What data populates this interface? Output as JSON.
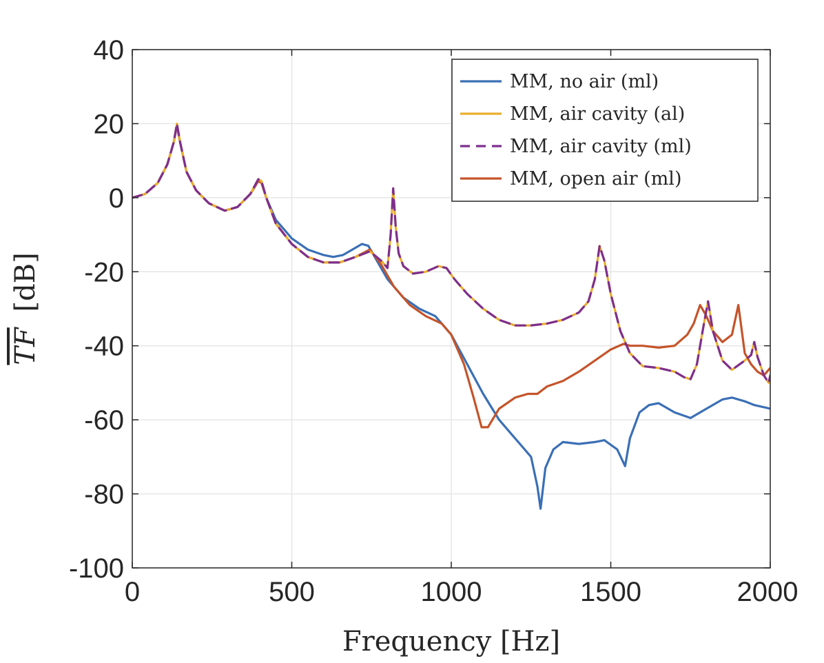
{
  "chart_data": {
    "type": "line",
    "xlabel": "Frequency [Hz]",
    "ylabel": "TF [dB]",
    "ylabel_parts": {
      "symbol": "TF",
      "unit": "[dB]"
    },
    "xlim": [
      0,
      2000
    ],
    "ylim": [
      -100,
      40
    ],
    "xticks": [
      0,
      500,
      1000,
      1500,
      2000
    ],
    "xtick_labels": [
      "0",
      "500",
      "1000",
      "1500",
      "2000"
    ],
    "yticks": [
      -100,
      -80,
      -60,
      -40,
      -20,
      0,
      20,
      40
    ],
    "ytick_labels": [
      "-100",
      "-80",
      "-60",
      "-40",
      "-20",
      "0",
      "20",
      "40"
    ],
    "grid": true,
    "legend_position": "top-right",
    "series": [
      {
        "name": "MM, no air (ml)",
        "color": "#3a6fb5",
        "dash": "solid",
        "x": [
          0,
          40,
          80,
          110,
          130,
          140,
          150,
          170,
          200,
          240,
          290,
          330,
          370,
          395,
          405,
          420,
          450,
          500,
          550,
          600,
          630,
          660,
          690,
          720,
          740,
          760,
          800,
          850,
          900,
          950,
          1000,
          1050,
          1100,
          1150,
          1200,
          1250,
          1270,
          1280,
          1295,
          1320,
          1350,
          1400,
          1450,
          1480,
          1520,
          1545,
          1560,
          1590,
          1620,
          1650,
          1700,
          1750,
          1800,
          1850,
          1880,
          1920,
          1950,
          2000
        ],
        "y": [
          0,
          1,
          4,
          9,
          15,
          19.5,
          15,
          7,
          2,
          -1.5,
          -3.5,
          -2.5,
          1,
          4.5,
          4,
          0,
          -6,
          -11,
          -14,
          -15.5,
          -16,
          -15.5,
          -14,
          -12.5,
          -13,
          -16,
          -22,
          -27,
          -30,
          -32,
          -37,
          -45,
          -53,
          -60,
          -65,
          -70,
          -78,
          -84,
          -73,
          -68,
          -66,
          -66.5,
          -66,
          -65.5,
          -68,
          -72.5,
          -65,
          -58,
          -56,
          -55.5,
          -58,
          -59.5,
          -57,
          -54.5,
          -54,
          -55,
          -56,
          -57
        ]
      },
      {
        "name": "MM, air cavity (al)",
        "color": "#e9ae2e",
        "dash": "solid",
        "x": [
          0,
          40,
          80,
          110,
          130,
          140,
          150,
          170,
          200,
          240,
          290,
          330,
          370,
          395,
          405,
          420,
          450,
          500,
          550,
          600,
          650,
          700,
          745,
          780,
          800,
          810,
          818,
          826,
          835,
          850,
          880,
          920,
          960,
          985,
          1010,
          1050,
          1100,
          1150,
          1200,
          1250,
          1300,
          1350,
          1400,
          1430,
          1450,
          1465,
          1480,
          1500,
          1530,
          1560,
          1600,
          1650,
          1700,
          1730,
          1750,
          1770,
          1790,
          1805,
          1820,
          1850,
          1880,
          1920,
          1940,
          1950,
          1960,
          1980,
          1995,
          2000
        ],
        "y": [
          0,
          1,
          4,
          9,
          15,
          20,
          15,
          7,
          2,
          -1.5,
          -3.5,
          -2.5,
          1,
          5,
          4.5,
          0,
          -7,
          -12.5,
          -16,
          -17.5,
          -17.5,
          -16,
          -14.5,
          -17,
          -19,
          -10,
          2.5,
          -8,
          -15,
          -18.5,
          -20.5,
          -20,
          -18.5,
          -19,
          -22,
          -26,
          -30,
          -33,
          -34.5,
          -34.5,
          -34,
          -33,
          -31,
          -28,
          -22,
          -13,
          -17,
          -26,
          -36,
          -42,
          -45.5,
          -46,
          -47,
          -48.5,
          -49,
          -45,
          -35,
          -28,
          -36,
          -44,
          -46.5,
          -44,
          -42.5,
          -39,
          -43,
          -48,
          -50,
          -48
        ]
      },
      {
        "name": "MM, air cavity (ml)",
        "color": "#7e2f8e",
        "dash": "dashed",
        "x": [
          0,
          40,
          80,
          110,
          130,
          140,
          150,
          170,
          200,
          240,
          290,
          330,
          370,
          395,
          405,
          420,
          450,
          500,
          550,
          600,
          650,
          700,
          745,
          780,
          800,
          810,
          818,
          826,
          835,
          850,
          880,
          920,
          960,
          985,
          1010,
          1050,
          1100,
          1150,
          1200,
          1250,
          1300,
          1350,
          1400,
          1430,
          1450,
          1465,
          1480,
          1500,
          1530,
          1560,
          1600,
          1650,
          1700,
          1730,
          1750,
          1770,
          1790,
          1805,
          1820,
          1850,
          1880,
          1920,
          1940,
          1950,
          1960,
          1980,
          1995,
          2000
        ],
        "y": [
          0,
          1,
          4,
          9,
          15,
          20,
          15,
          7,
          2,
          -1.5,
          -3.5,
          -2.5,
          1,
          5,
          4.5,
          0,
          -7,
          -12.5,
          -16,
          -17.5,
          -17.5,
          -16,
          -14.5,
          -17,
          -19,
          -10,
          2.5,
          -8,
          -15,
          -18.5,
          -20.5,
          -20,
          -18.5,
          -19,
          -22,
          -26,
          -30,
          -33,
          -34.5,
          -34.5,
          -34,
          -33,
          -31,
          -28,
          -22,
          -13,
          -17,
          -26,
          -36,
          -42,
          -45.5,
          -46,
          -47,
          -48.5,
          -49,
          -45,
          -35,
          -28,
          -36,
          -44,
          -46.5,
          -44,
          -42.5,
          -39,
          -43,
          -48,
          -50,
          -48
        ]
      },
      {
        "name": "MM, open air (ml)",
        "color": "#c4542a",
        "dash": "solid",
        "x": [
          0,
          40,
          80,
          110,
          130,
          140,
          150,
          170,
          200,
          240,
          290,
          330,
          370,
          395,
          405,
          420,
          450,
          500,
          550,
          600,
          650,
          700,
          745,
          780,
          820,
          870,
          920,
          970,
          1000,
          1040,
          1070,
          1095,
          1115,
          1150,
          1200,
          1240,
          1270,
          1300,
          1350,
          1400,
          1450,
          1500,
          1540,
          1560,
          1600,
          1650,
          1700,
          1740,
          1760,
          1780,
          1800,
          1820,
          1850,
          1880,
          1900,
          1920,
          1940,
          1960,
          1980,
          2000
        ],
        "y": [
          0,
          1,
          4,
          9,
          15,
          19.5,
          15,
          7,
          2,
          -1.5,
          -3.5,
          -2.5,
          1,
          4.5,
          4,
          0,
          -7,
          -12.5,
          -16,
          -17.5,
          -17.5,
          -16,
          -14,
          -18,
          -24,
          -29,
          -32,
          -34,
          -37,
          -45,
          -54,
          -62,
          -62,
          -57,
          -54,
          -53,
          -53,
          -51,
          -49.5,
          -47,
          -44,
          -41,
          -39.5,
          -40,
          -40,
          -40.5,
          -40,
          -37,
          -34,
          -29,
          -32,
          -36,
          -39,
          -37,
          -29,
          -42,
          -45,
          -47,
          -48,
          -46
        ]
      }
    ]
  }
}
